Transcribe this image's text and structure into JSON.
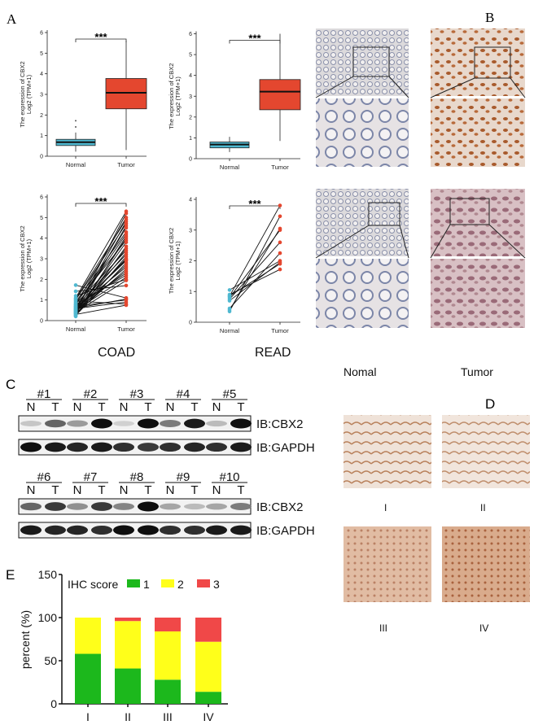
{
  "panels": {
    "A": "A",
    "B": "B",
    "C": "C",
    "D": "D",
    "E": "E"
  },
  "colors": {
    "normal": "#4fb8d0",
    "tumor": "#e4472f",
    "score1": "#1cb81c",
    "score2": "#ffff1a",
    "score3": "#f04848"
  },
  "chart_data": [
    {
      "type": "box",
      "id": "coad-box",
      "ylabel_line1": "The expression of CBX2",
      "ylabel_line2": "Log2 (TPM+1)",
      "categories": [
        "Normal",
        "Tumor"
      ],
      "ylim": [
        0,
        6
      ],
      "yticks": [
        0,
        1,
        2,
        3,
        4,
        5,
        6
      ],
      "significance": "***",
      "boxes": [
        {
          "q1": 0.52,
          "median": 0.68,
          "q3": 0.82,
          "min": 0.22,
          "max": 1.15,
          "outliers": [
            1.42,
            1.72
          ]
        },
        {
          "q1": 2.3,
          "median": 3.08,
          "q3": 3.77,
          "min": 0.3,
          "max": 5.6,
          "outliers": []
        }
      ]
    },
    {
      "type": "box",
      "id": "read-box",
      "ylabel_line1": "The expression of CBX2",
      "ylabel_line2": "Log2 (TPM+1)",
      "categories": [
        "Normal",
        "Tumor"
      ],
      "ylim": [
        0,
        6.4
      ],
      "yticks": [
        0,
        1,
        2,
        3,
        4,
        5,
        6
      ],
      "significance": "***",
      "boxes": [
        {
          "q1": 0.52,
          "median": 0.68,
          "q3": 0.8,
          "min": 0.32,
          "max": 1.05,
          "outliers": []
        },
        {
          "q1": 2.35,
          "median": 3.22,
          "q3": 3.8,
          "min": 0.85,
          "max": 6.0,
          "outliers": []
        }
      ]
    },
    {
      "type": "paired",
      "id": "coad-paired",
      "title": "COAD",
      "ylabel_line1": "The expression of CBX2",
      "ylabel_line2": "Log2 (TPM+1)",
      "categories": [
        "Normal",
        "Tumor"
      ],
      "ylim": [
        0,
        6
      ],
      "yticks": [
        0,
        1,
        2,
        3,
        4,
        5,
        6
      ],
      "significance": "***",
      "normal": [
        1.72,
        1.42,
        1.2,
        1.1,
        1.05,
        1.0,
        0.95,
        0.9,
        0.85,
        0.8,
        0.78,
        0.75,
        0.7,
        0.68,
        0.65,
        0.62,
        0.6,
        0.58,
        0.55,
        0.52,
        0.5,
        0.48,
        0.45,
        0.42,
        0.4,
        0.38,
        0.35,
        0.33,
        0.3,
        0.28,
        0.25,
        0.22,
        0.2,
        0.5,
        0.45,
        0.6,
        0.7,
        0.4,
        0.55,
        0.35
      ],
      "tumor": [
        1.1,
        1.7,
        2.0,
        5.3,
        4.9,
        4.7,
        0.8,
        4.3,
        3.9,
        3.4,
        2.2,
        5.0,
        1.0,
        3.2,
        4.2,
        2.6,
        2.9,
        0.9,
        4.5,
        3.0,
        2.1,
        4.8,
        3.5,
        2.7,
        1.95,
        3.3,
        2.5,
        4.0,
        0.75,
        3.1,
        2.8,
        3.6,
        4.1,
        2.4,
        5.2,
        1.05,
        2.3,
        3.8,
        2.95,
        4.6
      ]
    },
    {
      "type": "paired",
      "id": "read-paired",
      "title": "READ",
      "ylabel_line1": "The expression of CBX2",
      "ylabel_line2": "Log2 (TPM+1)",
      "categories": [
        "Normal",
        "Tumor"
      ],
      "ylim": [
        0,
        4
      ],
      "yticks": [
        0,
        1,
        2,
        3,
        4
      ],
      "significance": "***",
      "normal": [
        0.85,
        0.35,
        0.4,
        0.8,
        0.75,
        0.45,
        1.05,
        0.7,
        0.85,
        0.9
      ],
      "tumor": [
        3.8,
        3.45,
        3.05,
        3.0,
        2.6,
        2.25,
        2.0,
        1.95,
        1.9,
        1.72
      ]
    },
    {
      "type": "bar",
      "stacked": true,
      "id": "ihc-bar",
      "ylabel": "percent (%)",
      "ylim": [
        0,
        150
      ],
      "yticks": [
        0,
        50,
        100,
        150
      ],
      "categories": [
        "I",
        "II",
        "III",
        "IV"
      ],
      "legend_title": "IHC score",
      "legend_position": "top",
      "series": [
        {
          "name": "1",
          "values": [
            58,
            41,
            28,
            14
          ]
        },
        {
          "name": "2",
          "values": [
            42,
            55,
            56,
            58
          ]
        },
        {
          "name": "3",
          "values": [
            0,
            4,
            16,
            28
          ]
        }
      ]
    }
  ],
  "panel_b": {
    "labels": [
      "Nomal",
      "Tumor"
    ]
  },
  "panel_c": {
    "groups_top": [
      "#1",
      "#2",
      "#3",
      "#4",
      "#5"
    ],
    "groups_bottom": [
      "#6",
      "#7",
      "#8",
      "#9",
      "#10"
    ],
    "lane_n": "N",
    "lane_t": "T",
    "cbx2_label": "IB:CBX2",
    "gapdh_label": "IB:GAPDH",
    "cbx2_top": [
      0.15,
      0.6,
      0.35,
      1,
      0.1,
      1,
      0.5,
      0.95,
      0.2,
      1
    ],
    "gapdh_top": [
      1,
      0.95,
      0.9,
      0.95,
      0.85,
      0.8,
      0.85,
      0.9,
      0.85,
      0.95
    ],
    "cbx2_bottom": [
      0.6,
      0.8,
      0.4,
      0.8,
      0.45,
      1,
      0.3,
      0.2,
      0.3,
      0.5
    ],
    "gapdh_bottom": [
      0.95,
      0.9,
      0.9,
      0.85,
      1,
      1,
      0.85,
      0.85,
      0.95,
      0.95
    ]
  },
  "panel_d": {
    "labels": [
      "I",
      "II",
      "III",
      "IV"
    ]
  }
}
